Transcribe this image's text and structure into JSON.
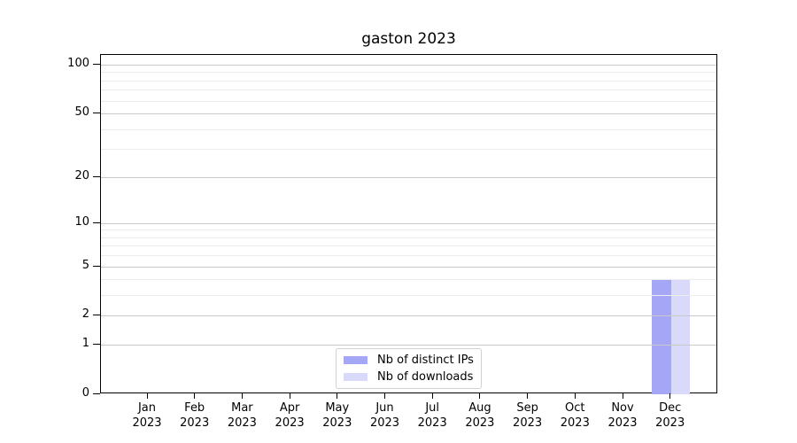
{
  "title": "gaston 2023",
  "chart_data": {
    "type": "bar",
    "title": "gaston 2023",
    "categories": [
      "Jan 2023",
      "Feb 2023",
      "Mar 2023",
      "Apr 2023",
      "May 2023",
      "Jun 2023",
      "Jul 2023",
      "Aug 2023",
      "Sep 2023",
      "Oct 2023",
      "Nov 2023",
      "Dec 2023"
    ],
    "series": [
      {
        "name": "Nb of distinct IPs",
        "color": "#a6a6f7",
        "values": [
          0,
          0,
          0,
          0,
          0,
          0,
          0,
          0,
          0,
          0,
          0,
          4
        ]
      },
      {
        "name": "Nb of downloads",
        "color": "#d9d9fa",
        "values": [
          0,
          0,
          0,
          0,
          0,
          0,
          0,
          0,
          0,
          0,
          0,
          4
        ]
      }
    ],
    "xlabel": "",
    "ylabel": "",
    "y_axis": {
      "scale": "log1p",
      "ticks": [
        0,
        1,
        2,
        5,
        10,
        20,
        50,
        100
      ],
      "minor_ticks": [
        3,
        4,
        6,
        7,
        8,
        9,
        30,
        40,
        60,
        70,
        80,
        90
      ],
      "ylim": [
        0,
        111
      ]
    },
    "grid": "horizontal",
    "legend_position": "lower center"
  },
  "legend": {
    "items": [
      {
        "label": "Nb of distinct IPs",
        "color": "#a6a6f7"
      },
      {
        "label": "Nb of downloads",
        "color": "#d9d9fa"
      }
    ]
  }
}
